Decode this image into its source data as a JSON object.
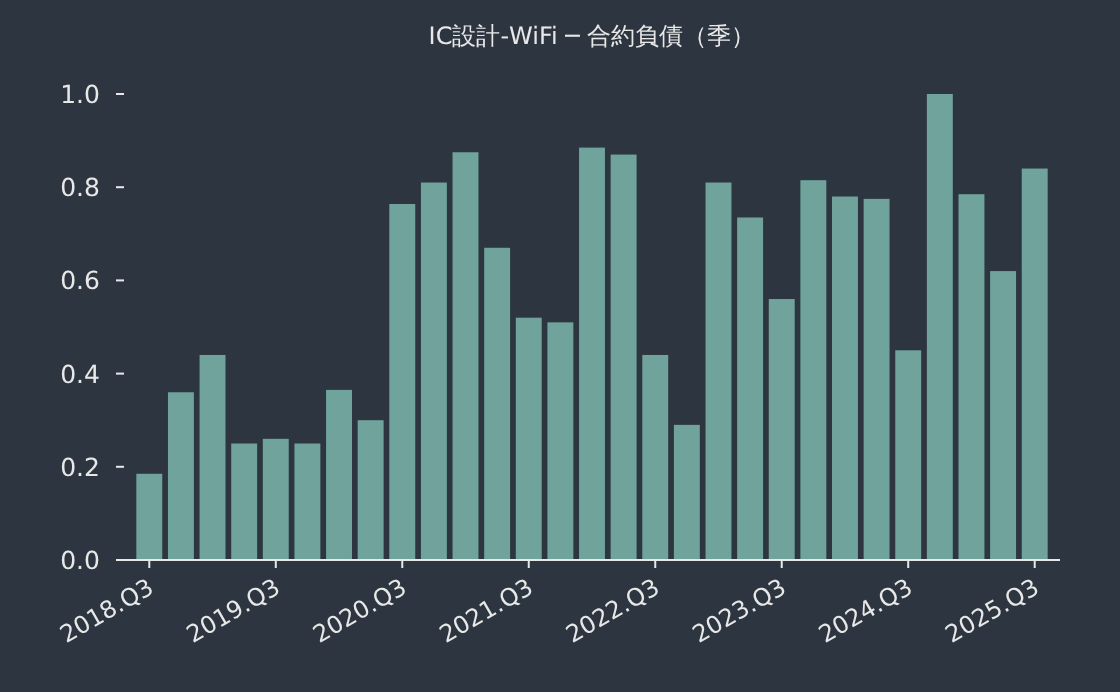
{
  "chart_data": {
    "type": "bar",
    "title": "IC設計-WiFi ─ 合約負債（季）",
    "categories": [
      "2018.Q3",
      null,
      null,
      null,
      "2019.Q3",
      null,
      null,
      null,
      "2020.Q3",
      null,
      null,
      null,
      "2021.Q3",
      null,
      null,
      null,
      "2022.Q3",
      null,
      null,
      null,
      "2023.Q3",
      null,
      null,
      null,
      "2024.Q3",
      null,
      null,
      null,
      "2025.Q3"
    ],
    "values": [
      0.185,
      0.36,
      0.44,
      0.25,
      0.26,
      0.25,
      0.365,
      0.3,
      0.764,
      0.81,
      0.875,
      0.67,
      0.52,
      0.51,
      0.885,
      0.87,
      0.44,
      0.29,
      0.81,
      0.735,
      0.56,
      0.815,
      0.78,
      0.775,
      0.45,
      1.0,
      0.785,
      0.62,
      0.84
    ],
    "color": "#6fa39c",
    "ylim": [
      0,
      1.0
    ],
    "yticks": [
      {
        "value": 0,
        "label": "0.0"
      },
      {
        "value": 0.2,
        "label": "0.2"
      },
      {
        "value": 0.4,
        "label": "0.4"
      },
      {
        "value": 0.6,
        "label": "0.6"
      },
      {
        "value": 0.8,
        "label": "0.8"
      },
      {
        "value": 1.0,
        "label": "1.0"
      }
    ],
    "grid": false
  }
}
